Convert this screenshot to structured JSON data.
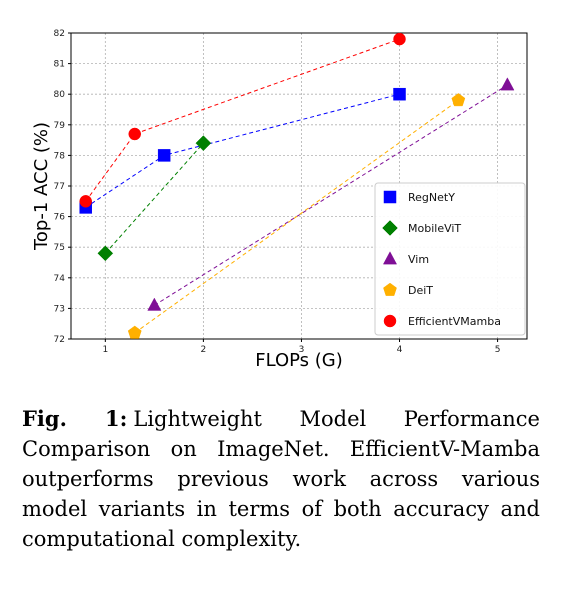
{
  "chart_data": {
    "type": "line",
    "title": "",
    "xlabel": "FLOPs (G)",
    "ylabel": "Top-1 ACC (%)",
    "xlim": [
      0.65,
      5.3
    ],
    "ylim": [
      72,
      82
    ],
    "xticks": [
      1,
      2,
      3,
      4,
      5
    ],
    "yticks": [
      72,
      73,
      74,
      75,
      76,
      77,
      78,
      79,
      80,
      81,
      82
    ],
    "grid": true,
    "legend_position": "bottom-right",
    "series": [
      {
        "name": "RegNetY",
        "color": "#0000ff",
        "marker": "square",
        "x": [
          0.8,
          1.6,
          4.0
        ],
        "y": [
          76.3,
          78.0,
          80.0
        ]
      },
      {
        "name": "MobileViT",
        "color": "#008000",
        "marker": "diamond",
        "x": [
          1.0,
          2.0
        ],
        "y": [
          74.8,
          78.4
        ]
      },
      {
        "name": "Vim",
        "color": "#7f0f96",
        "marker": "triangle",
        "x": [
          1.5,
          5.1
        ],
        "y": [
          73.1,
          80.3
        ]
      },
      {
        "name": "DeiT",
        "color": "#ffb000",
        "marker": "pentagon",
        "x": [
          1.3,
          4.6
        ],
        "y": [
          72.2,
          79.8
        ]
      },
      {
        "name": "EfficientVMamba",
        "color": "#ff0000",
        "marker": "circle",
        "x": [
          0.8,
          1.3,
          4.0
        ],
        "y": [
          76.5,
          78.7,
          81.8
        ]
      }
    ]
  },
  "caption": {
    "label": "Fig. 1:",
    "text": "Lightweight Model Performance Comparison on ImageNet. EfficientV-Mamba outperforms previous work across various model variants in terms of both accuracy and computational complexity."
  }
}
